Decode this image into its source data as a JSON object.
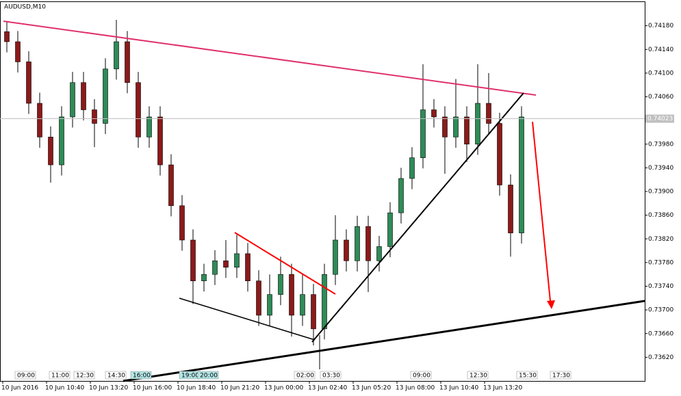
{
  "chart_data": {
    "type": "candlestick",
    "title": "AUDUSD,M10",
    "categories": [
      "10 Jun 2016",
      null,
      null,
      null,
      "10 Jun 10:40",
      null,
      null,
      null,
      "10 Jun 13:20",
      null,
      null,
      null,
      "10 Jun 16:00",
      null,
      null,
      null,
      "10 Jun 18:40",
      null,
      null,
      null,
      "10 Jun 21:20",
      null,
      null,
      null,
      "13 Jun 00:00",
      null,
      null,
      null,
      "13 Jun 02:40",
      null,
      null,
      null,
      "13 Jun 05:20",
      null,
      null,
      null,
      "13 Jun 08:00",
      null,
      null,
      null,
      "13 Jun 10:40",
      null,
      null,
      null,
      "13 Jun 13:20",
      null,
      null,
      null
    ],
    "open": [
      0.7417,
      0.74153,
      0.74119,
      0.74049,
      0.73992,
      0.73945,
      0.74026,
      0.74084,
      0.74038,
      0.74015,
      0.74107,
      0.74153,
      0.74084,
      0.73992,
      0.74026,
      0.73945,
      0.73876,
      0.73818,
      0.73749,
      0.7376,
      0.73783,
      0.73772,
      0.73795,
      0.73749,
      0.73691,
      0.73726,
      0.7376,
      0.73691,
      0.73726,
      0.73668,
      0.7376,
      0.73818,
      0.73783,
      0.73841,
      0.73783,
      0.73807,
      0.73864,
      0.73922,
      0.73957,
      0.74038,
      0.74026,
      0.73992,
      0.74026,
      0.7398,
      0.74049,
      0.74015,
      0.73911,
      0.7383
    ],
    "high": [
      0.74188,
      0.74171,
      0.74137,
      0.74067,
      0.7401,
      0.74044,
      0.74102,
      0.74102,
      0.74056,
      0.74125,
      0.7419,
      0.74171,
      0.74102,
      0.74044,
      0.74044,
      0.73963,
      0.73894,
      0.73836,
      0.73778,
      0.73801,
      0.73818,
      0.73827,
      0.73813,
      0.73767,
      0.7376,
      0.7379,
      0.73778,
      0.7376,
      0.73744,
      0.73778,
      0.7386,
      0.73836,
      0.73859,
      0.73859,
      0.73825,
      0.73882,
      0.7394,
      0.73975,
      0.74115,
      0.74056,
      0.74044,
      0.7409,
      0.74044,
      0.74115,
      0.741,
      0.74033,
      0.73929,
      0.74044
    ],
    "low": [
      0.74135,
      0.74101,
      0.74031,
      0.73974,
      0.73915,
      0.73927,
      0.74008,
      0.7402,
      0.73975,
      0.73997,
      0.74089,
      0.74066,
      0.73974,
      0.73974,
      0.73927,
      0.73858,
      0.738,
      0.7371,
      0.73731,
      0.73742,
      0.73754,
      0.73754,
      0.73731,
      0.73673,
      0.73673,
      0.73708,
      0.73655,
      0.73673,
      0.7364,
      0.7365,
      0.73742,
      0.73765,
      0.73765,
      0.7373,
      0.73765,
      0.73789,
      0.73846,
      0.73904,
      0.73939,
      0.74008,
      0.7393,
      0.73974,
      0.7395,
      0.73962,
      0.73997,
      0.73893,
      0.7379,
      0.73812
    ],
    "close": [
      0.74153,
      0.74119,
      0.74049,
      0.73992,
      0.73945,
      0.74026,
      0.74084,
      0.74038,
      0.74015,
      0.74107,
      0.74153,
      0.74084,
      0.73992,
      0.74026,
      0.73945,
      0.73876,
      0.73818,
      0.73749,
      0.7376,
      0.73783,
      0.73772,
      0.73795,
      0.73749,
      0.73691,
      0.73726,
      0.7376,
      0.73691,
      0.73726,
      0.73668,
      0.7376,
      0.73818,
      0.73783,
      0.73841,
      0.73783,
      0.73807,
      0.73864,
      0.73922,
      0.73957,
      0.74038,
      0.74026,
      0.73992,
      0.74026,
      0.7398,
      0.74049,
      0.74015,
      0.73911,
      0.7383,
      0.74026
    ],
    "up_color": "#2e8b57",
    "down_color": "#8b1a1a",
    "ylim": [
      0.7358,
      0.7422
    ],
    "yticks": [
      {
        "value": 0.7362,
        "label": "0.73620"
      },
      {
        "value": 0.7366,
        "label": "0.73660"
      },
      {
        "value": 0.737,
        "label": "0.73700"
      },
      {
        "value": 0.7374,
        "label": "0.73740"
      },
      {
        "value": 0.7378,
        "label": "0.73780"
      },
      {
        "value": 0.7382,
        "label": "0.73820"
      },
      {
        "value": 0.7386,
        "label": "0.73860"
      },
      {
        "value": 0.739,
        "label": "0.73900"
      },
      {
        "value": 0.7394,
        "label": "0.73940"
      },
      {
        "value": 0.7398,
        "label": "0.73980"
      },
      {
        "value": 0.7406,
        "label": "0.74060"
      },
      {
        "value": 0.741,
        "label": "0.74100"
      },
      {
        "value": 0.7414,
        "label": "0.74140"
      },
      {
        "value": 0.7418,
        "label": "0.74180"
      }
    ],
    "current_price": {
      "value": 0.74023,
      "label": "0.74023"
    },
    "time_markers": [
      "09:00",
      "11:00",
      "12:30",
      "14:30",
      "16:00",
      "19:00",
      "20:00",
      "02:00",
      "03:30",
      "09:00",
      "12:30",
      "15:30",
      "17:30"
    ],
    "grid": false
  }
}
